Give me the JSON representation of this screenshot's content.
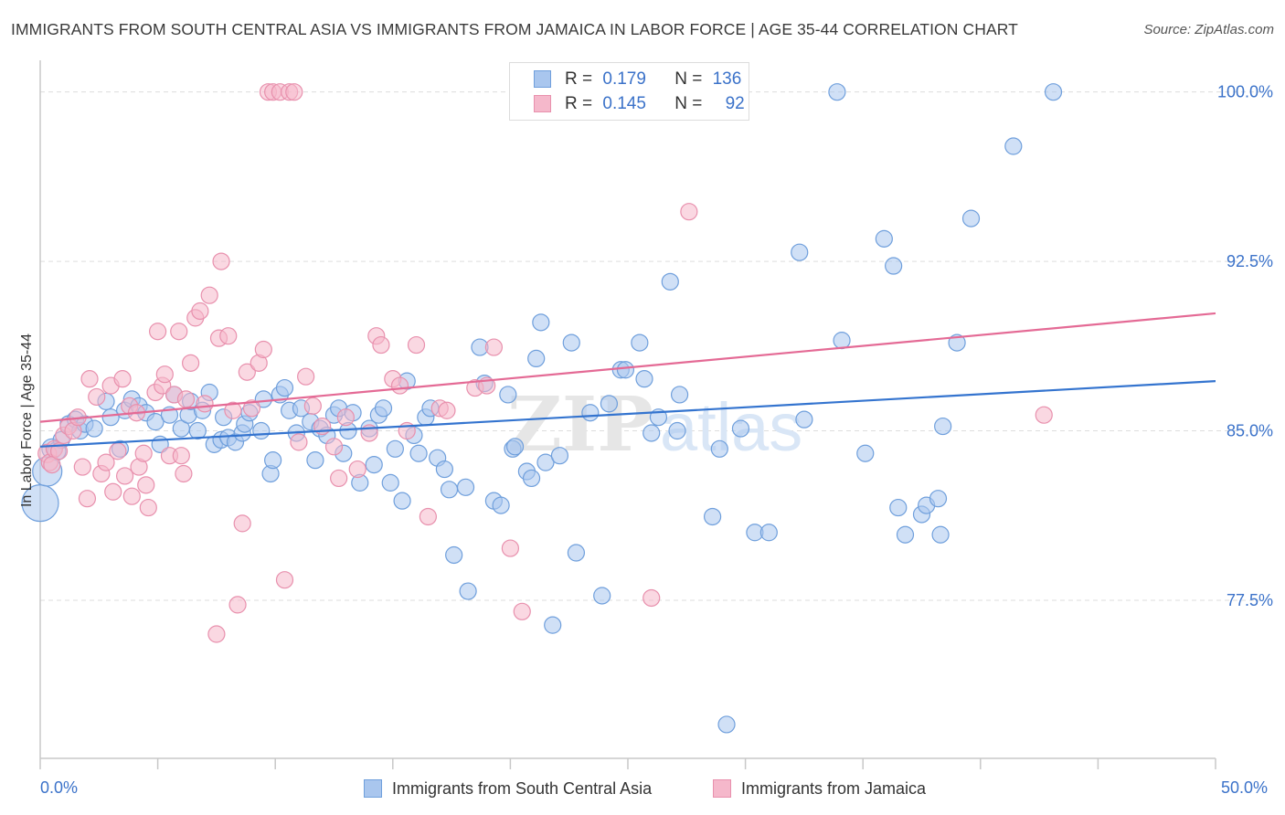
{
  "header": {
    "title": "IMMIGRANTS FROM SOUTH CENTRAL ASIA VS IMMIGRANTS FROM JAMAICA IN LABOR FORCE | AGE 35-44 CORRELATION CHART",
    "source": "Source: ZipAtlas.com"
  },
  "legend": {
    "rows": [
      {
        "r_label": "R =",
        "r_value": "0.179",
        "n_label": "N =",
        "n_value": "136"
      },
      {
        "r_label": "R =",
        "r_value": "0.145",
        "n_label": "N =",
        "n_value": "92"
      }
    ]
  },
  "watermark": {
    "zip": "ZIP",
    "atlas": "atlas"
  },
  "colors": {
    "blue_fill": "#a9c6ee",
    "blue_stroke": "#6f9fdc",
    "blue_line": "#3474cf",
    "pink_fill": "#f5b8cb",
    "pink_stroke": "#e890ad",
    "pink_line": "#e46a95",
    "tick_label": "#3b72c9",
    "grid": "#dddddd"
  },
  "chart_data": {
    "type": "scatter",
    "title": "IMMIGRANTS FROM SOUTH CENTRAL ASIA VS IMMIGRANTS FROM JAMAICA IN LABOR FORCE | AGE 35-44 CORRELATION CHART",
    "xlabel": "",
    "ylabel": "In Labor Force | Age 35-44",
    "xlim": [
      0,
      50
    ],
    "ylim": [
      70.5,
      101.2
    ],
    "x_tick_labels": [
      "0.0%",
      "50.0%"
    ],
    "y_ticks": [
      77.5,
      85.0,
      92.5,
      100.0
    ],
    "y_tick_labels": [
      "77.5%",
      "85.0%",
      "92.5%",
      "100.0%"
    ],
    "grid": true,
    "legend_position": "bottom",
    "series": [
      {
        "name": "Immigrants from South Central Asia",
        "color": "#6f9fdc",
        "trend": {
          "x": [
            0,
            50
          ],
          "y": [
            84.3,
            87.2
          ]
        },
        "points": [
          [
            0.0,
            81.8,
            20
          ],
          [
            0.3,
            83.2,
            16
          ],
          [
            0.5,
            84.2,
            11
          ],
          [
            0.7,
            84.1,
            10
          ],
          [
            0.9,
            84.6,
            9
          ],
          [
            1.2,
            85.3,
            9
          ],
          [
            1.5,
            85.5,
            9
          ],
          [
            1.7,
            85.0,
            9
          ],
          [
            1.9,
            85.3,
            9
          ],
          [
            2.3,
            85.1,
            9
          ],
          [
            2.8,
            86.3,
            9
          ],
          [
            3.0,
            85.6,
            9
          ],
          [
            3.4,
            84.2,
            9
          ],
          [
            3.6,
            85.9,
            9
          ],
          [
            3.9,
            86.4,
            9
          ],
          [
            4.2,
            86.1,
            9
          ],
          [
            4.5,
            85.8,
            9
          ],
          [
            4.9,
            85.4,
            9
          ],
          [
            5.1,
            84.4,
            9
          ],
          [
            5.5,
            85.7,
            9
          ],
          [
            5.7,
            86.6,
            9
          ],
          [
            6.0,
            85.1,
            9
          ],
          [
            6.3,
            85.7,
            9
          ],
          [
            6.4,
            86.3,
            9
          ],
          [
            6.7,
            85.0,
            9
          ],
          [
            6.9,
            85.9,
            9
          ],
          [
            7.2,
            86.7,
            9
          ],
          [
            7.4,
            84.4,
            9
          ],
          [
            7.7,
            84.6,
            9
          ],
          [
            7.8,
            85.6,
            9
          ],
          [
            8.0,
            84.7,
            9
          ],
          [
            8.3,
            84.5,
            9
          ],
          [
            8.6,
            84.9,
            9
          ],
          [
            8.7,
            85.3,
            9
          ],
          [
            8.9,
            85.8,
            9
          ],
          [
            9.4,
            85.0,
            9
          ],
          [
            9.5,
            86.4,
            9
          ],
          [
            9.8,
            83.1,
            9
          ],
          [
            9.9,
            83.7,
            9
          ],
          [
            10.2,
            86.6,
            9
          ],
          [
            10.4,
            86.9,
            9
          ],
          [
            10.6,
            85.9,
            9
          ],
          [
            10.9,
            84.9,
            9
          ],
          [
            11.1,
            86.0,
            9
          ],
          [
            11.5,
            85.4,
            9
          ],
          [
            11.7,
            83.7,
            9
          ],
          [
            11.9,
            85.1,
            9
          ],
          [
            12.2,
            84.8,
            9
          ],
          [
            12.5,
            85.7,
            9
          ],
          [
            12.7,
            86.0,
            9
          ],
          [
            12.9,
            84.0,
            9
          ],
          [
            13.1,
            85.0,
            9
          ],
          [
            13.3,
            85.8,
            9
          ],
          [
            13.6,
            82.7,
            9
          ],
          [
            14.0,
            85.1,
            9
          ],
          [
            14.2,
            83.5,
            9
          ],
          [
            14.4,
            85.7,
            9
          ],
          [
            14.6,
            86.0,
            9
          ],
          [
            14.9,
            82.7,
            9
          ],
          [
            15.1,
            84.2,
            9
          ],
          [
            15.4,
            81.9,
            9
          ],
          [
            15.6,
            87.2,
            9
          ],
          [
            15.9,
            84.8,
            9
          ],
          [
            16.1,
            84.0,
            9
          ],
          [
            16.4,
            85.6,
            9
          ],
          [
            16.6,
            86.0,
            9
          ],
          [
            16.9,
            83.8,
            9
          ],
          [
            17.2,
            83.3,
            9
          ],
          [
            17.4,
            82.4,
            9
          ],
          [
            17.6,
            79.5,
            9
          ],
          [
            18.1,
            82.5,
            9
          ],
          [
            18.2,
            77.9,
            9
          ],
          [
            18.7,
            88.7,
            9
          ],
          [
            18.9,
            87.1,
            9
          ],
          [
            19.3,
            81.9,
            9
          ],
          [
            19.6,
            81.7,
            9
          ],
          [
            19.9,
            86.6,
            9
          ],
          [
            20.1,
            84.2,
            9
          ],
          [
            20.2,
            84.3,
            9
          ],
          [
            20.7,
            83.2,
            9
          ],
          [
            20.9,
            82.9,
            9
          ],
          [
            21.1,
            88.2,
            9
          ],
          [
            21.3,
            89.8,
            9
          ],
          [
            21.5,
            83.6,
            9
          ],
          [
            21.8,
            76.4,
            9
          ],
          [
            22.1,
            83.9,
            9
          ],
          [
            22.6,
            88.9,
            9
          ],
          [
            22.8,
            79.6,
            9
          ],
          [
            23.4,
            85.8,
            9
          ],
          [
            23.9,
            77.7,
            9
          ],
          [
            24.2,
            86.2,
            9
          ],
          [
            24.7,
            87.7,
            9
          ],
          [
            24.9,
            87.7,
            9
          ],
          [
            25.5,
            88.9,
            9
          ],
          [
            25.7,
            87.3,
            9
          ],
          [
            26.0,
            84.9,
            9
          ],
          [
            26.3,
            85.6,
            9
          ],
          [
            26.8,
            91.6,
            9
          ],
          [
            27.1,
            85.0,
            9
          ],
          [
            27.2,
            86.6,
            9
          ],
          [
            28.6,
            81.2,
            9
          ],
          [
            28.9,
            84.2,
            9
          ],
          [
            29.2,
            72.0,
            9
          ],
          [
            29.8,
            85.1,
            9
          ],
          [
            30.4,
            80.5,
            9
          ],
          [
            31.0,
            80.5,
            9
          ],
          [
            32.3,
            92.9,
            9
          ],
          [
            32.5,
            85.5,
            9
          ],
          [
            33.9,
            100.0,
            9
          ],
          [
            34.1,
            89.0,
            9
          ],
          [
            35.1,
            84.0,
            9
          ],
          [
            35.9,
            93.5,
            9
          ],
          [
            36.3,
            92.3,
            9
          ],
          [
            36.5,
            81.6,
            9
          ],
          [
            36.8,
            80.4,
            9
          ],
          [
            37.5,
            81.3,
            9
          ],
          [
            37.7,
            81.7,
            9
          ],
          [
            38.2,
            82.0,
            9
          ],
          [
            38.3,
            80.4,
            9
          ],
          [
            38.4,
            85.2,
            9
          ],
          [
            39.0,
            88.9,
            9
          ],
          [
            39.6,
            94.4,
            9
          ],
          [
            41.4,
            97.6,
            9
          ],
          [
            43.1,
            100.0,
            9
          ]
        ]
      },
      {
        "name": "Immigrants from Jamaica",
        "color": "#e890ad",
        "trend": {
          "x": [
            0,
            50
          ],
          "y": [
            85.4,
            90.2
          ]
        },
        "points": [
          [
            0.3,
            84.0,
            10
          ],
          [
            0.4,
            83.6,
            9
          ],
          [
            0.5,
            83.5,
            9
          ],
          [
            0.6,
            84.2,
            9
          ],
          [
            0.8,
            84.1,
            9
          ],
          [
            1.0,
            84.8,
            9
          ],
          [
            1.2,
            85.2,
            9
          ],
          [
            1.4,
            85.0,
            9
          ],
          [
            1.6,
            85.6,
            9
          ],
          [
            1.8,
            83.4,
            9
          ],
          [
            2.0,
            82.0,
            9
          ],
          [
            2.1,
            87.3,
            9
          ],
          [
            2.4,
            86.5,
            9
          ],
          [
            2.6,
            83.1,
            9
          ],
          [
            2.8,
            83.6,
            9
          ],
          [
            3.0,
            87.0,
            9
          ],
          [
            3.1,
            82.3,
            9
          ],
          [
            3.3,
            84.1,
            9
          ],
          [
            3.5,
            87.3,
            9
          ],
          [
            3.6,
            83.0,
            9
          ],
          [
            3.8,
            86.1,
            9
          ],
          [
            3.9,
            82.1,
            9
          ],
          [
            4.1,
            85.8,
            9
          ],
          [
            4.2,
            83.4,
            9
          ],
          [
            4.4,
            84.0,
            9
          ],
          [
            4.5,
            82.6,
            9
          ],
          [
            4.6,
            81.6,
            9
          ],
          [
            4.9,
            86.7,
            9
          ],
          [
            5.0,
            89.4,
            9
          ],
          [
            5.2,
            87.0,
            9
          ],
          [
            5.3,
            87.5,
            9
          ],
          [
            5.5,
            83.9,
            9
          ],
          [
            5.7,
            86.6,
            9
          ],
          [
            5.9,
            89.4,
            9
          ],
          [
            6.0,
            83.9,
            9
          ],
          [
            6.1,
            83.1,
            9
          ],
          [
            6.2,
            86.4,
            9
          ],
          [
            6.4,
            88.0,
            9
          ],
          [
            6.6,
            90.0,
            9
          ],
          [
            6.8,
            90.3,
            9
          ],
          [
            7.0,
            86.2,
            9
          ],
          [
            7.2,
            91.0,
            9
          ],
          [
            7.5,
            76.0,
            9
          ],
          [
            7.6,
            89.1,
            9
          ],
          [
            7.7,
            92.5,
            9
          ],
          [
            8.0,
            89.2,
            9
          ],
          [
            8.2,
            85.9,
            9
          ],
          [
            8.4,
            77.3,
            9
          ],
          [
            8.6,
            80.9,
            9
          ],
          [
            8.8,
            87.6,
            9
          ],
          [
            9.0,
            86.0,
            9
          ],
          [
            9.3,
            88.0,
            9
          ],
          [
            9.5,
            88.6,
            9
          ],
          [
            9.7,
            100.0,
            9
          ],
          [
            9.9,
            100.0,
            9
          ],
          [
            10.2,
            100.0,
            9
          ],
          [
            10.4,
            78.4,
            9
          ],
          [
            10.6,
            100.0,
            9
          ],
          [
            10.8,
            100.0,
            9
          ],
          [
            11.0,
            84.5,
            9
          ],
          [
            11.3,
            87.4,
            9
          ],
          [
            11.6,
            86.1,
            9
          ],
          [
            12.0,
            85.2,
            9
          ],
          [
            12.5,
            84.3,
            9
          ],
          [
            12.7,
            82.9,
            9
          ],
          [
            13.0,
            85.6,
            9
          ],
          [
            13.5,
            83.3,
            9
          ],
          [
            14.0,
            84.9,
            9
          ],
          [
            14.3,
            89.2,
            9
          ],
          [
            14.5,
            88.8,
            9
          ],
          [
            15.0,
            87.3,
            9
          ],
          [
            15.3,
            87.0,
            9
          ],
          [
            15.6,
            85.0,
            9
          ],
          [
            16.0,
            88.8,
            9
          ],
          [
            16.5,
            81.2,
            9
          ],
          [
            17.0,
            86.0,
            9
          ],
          [
            17.3,
            85.9,
            9
          ],
          [
            18.5,
            86.9,
            9
          ],
          [
            19.0,
            87.0,
            9
          ],
          [
            19.3,
            88.7,
            9
          ],
          [
            20.0,
            79.8,
            9
          ],
          [
            20.5,
            77.0,
            9
          ],
          [
            21.0,
            100.0,
            9
          ],
          [
            26.0,
            77.6,
            9
          ],
          [
            27.6,
            94.7,
            9
          ],
          [
            42.7,
            85.7,
            9
          ]
        ]
      }
    ]
  },
  "bottom_legend": [
    {
      "label": "Immigrants from South Central Asia"
    },
    {
      "label": "Immigrants from Jamaica"
    }
  ]
}
